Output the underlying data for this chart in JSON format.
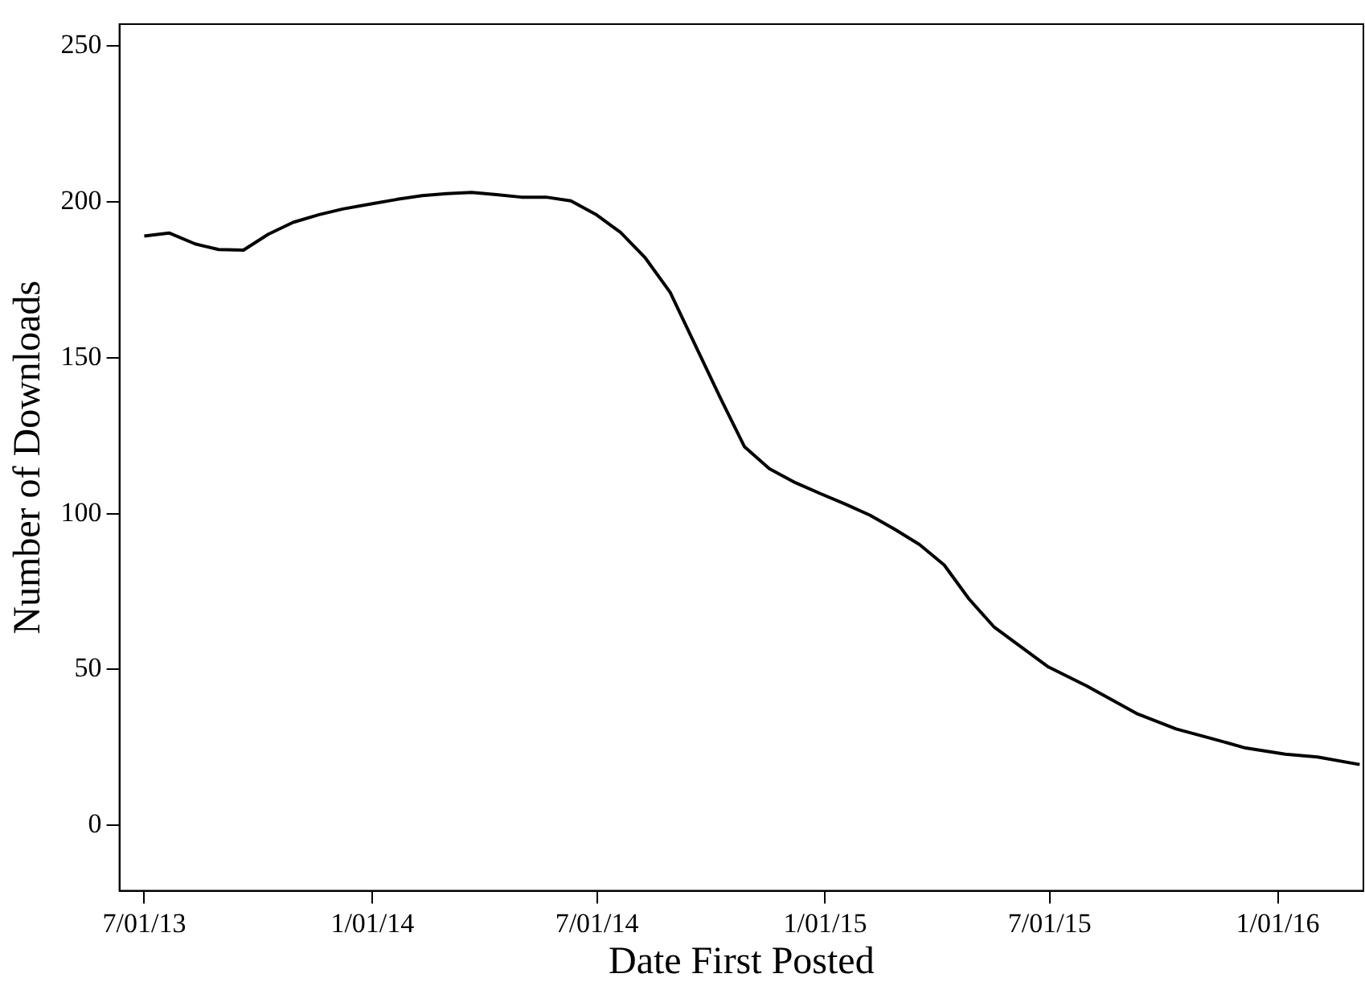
{
  "chart_data": {
    "type": "line",
    "xlabel": "Date First Posted",
    "ylabel": "Number of Downloads",
    "x": [
      "2013-07-01",
      "2013-07-21",
      "2013-08-11",
      "2013-08-30",
      "2013-09-19",
      "2013-10-09",
      "2013-10-29",
      "2013-11-19",
      "2013-12-08",
      "2014-01-01",
      "2014-01-21",
      "2014-02-10",
      "2014-03-02",
      "2014-03-22",
      "2014-04-11",
      "2014-05-01",
      "2014-05-21",
      "2014-06-10",
      "2014-06-30",
      "2014-07-20",
      "2014-08-09",
      "2014-08-29",
      "2014-10-08",
      "2014-10-28",
      "2014-11-17",
      "2014-12-08",
      "2014-12-27",
      "2015-01-17",
      "2015-02-06",
      "2015-02-26",
      "2015-03-18",
      "2015-04-07",
      "2015-04-27",
      "2015-05-17",
      "2015-06-06",
      "2015-06-30",
      "2015-07-31",
      "2015-09-09",
      "2015-10-11",
      "2015-11-10",
      "2015-12-06",
      "2016-01-07",
      "2016-02-02",
      "2016-03-07"
    ],
    "series": [
      {
        "color": "#000000",
        "values": [
          189,
          190,
          186.5,
          184.7,
          184.5,
          189.6,
          193.4,
          195.9,
          197.7,
          199.4,
          200.8,
          202,
          202.6,
          203,
          202.3,
          201.5,
          201.5,
          200.3,
          196,
          190.2,
          182,
          171,
          137.5,
          121.4,
          114.4,
          109.9,
          106.6,
          103.1,
          99.5,
          95,
          90.1,
          83.5,
          72.6,
          63.7,
          57.8,
          50.8,
          44.7,
          35.9,
          30.9,
          27.7,
          24.8,
          22.8,
          21.9,
          19.5
        ]
      }
    ],
    "xlim": [
      "2013-06-11",
      "2016-03-10"
    ],
    "ylim": [
      -21,
      257
    ],
    "xticks": [
      {
        "value": "2013-07-01",
        "label": "7/01/13"
      },
      {
        "value": "2014-01-01",
        "label": "1/01/14"
      },
      {
        "value": "2014-07-01",
        "label": "7/01/14"
      },
      {
        "value": "2015-01-01",
        "label": "1/01/15"
      },
      {
        "value": "2015-07-01",
        "label": "7/01/15"
      },
      {
        "value": "2016-01-01",
        "label": "1/01/16"
      }
    ],
    "yticks": [
      0,
      50,
      100,
      150,
      200,
      250
    ],
    "grid": false,
    "legend": false,
    "marker": "none",
    "line_style": "solid"
  }
}
